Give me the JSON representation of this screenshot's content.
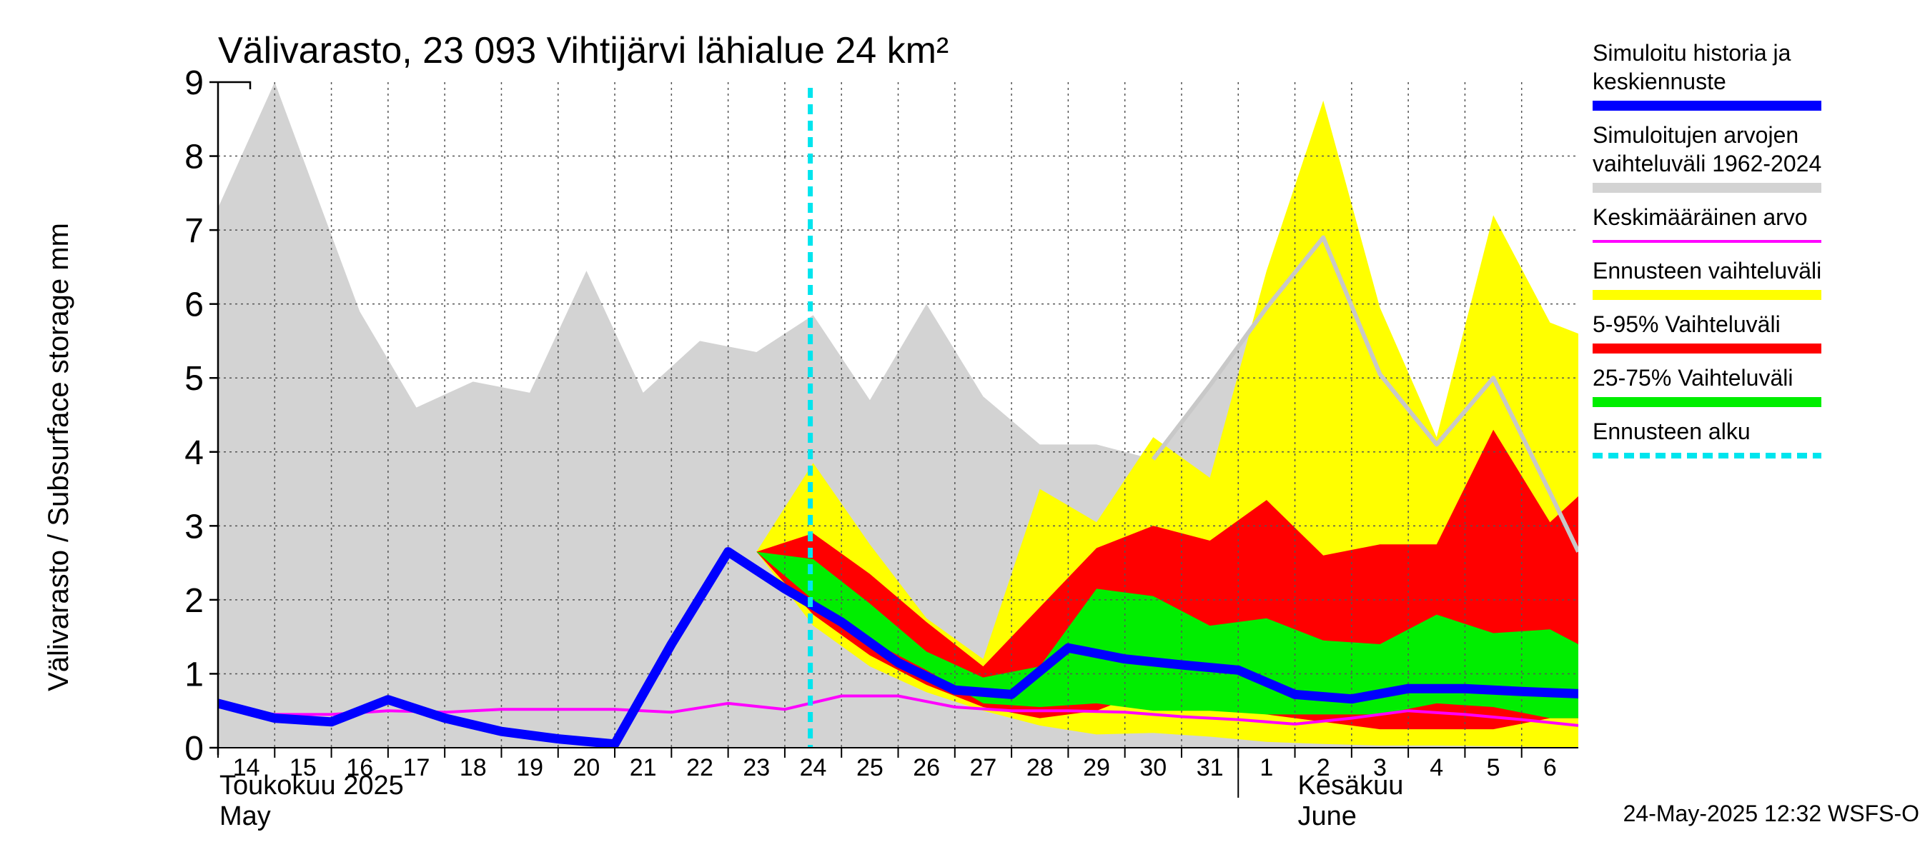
{
  "chart_data": {
    "type": "area",
    "title": "Välivarasto, 23 093 Vihtijärvi lähialue 24 km²",
    "ylabel": "Välivarasto / Subsurface storage  mm",
    "ylim": [
      0,
      9
    ],
    "yticks": [
      "0",
      "1",
      "2",
      "3",
      "4",
      "5",
      "6",
      "7",
      "8",
      "9"
    ],
    "x_range": [
      -0.5,
      23.5
    ],
    "x_tick_labels": [
      "14",
      "15",
      "16",
      "17",
      "18",
      "19",
      "20",
      "21",
      "22",
      "23",
      "24",
      "25",
      "26",
      "27",
      "28",
      "29",
      "30",
      "31",
      "1",
      "2",
      "3",
      "4",
      "5",
      "6"
    ],
    "month_labels": {
      "may_fi": "Toukokuu  2025",
      "may_en": "May",
      "june_fi": "Kesäkuu",
      "june_en": "June"
    },
    "grid": true,
    "legend_position": "right",
    "colors": {
      "history_range": "#d3d3d3",
      "history_line": "#c8c8c8",
      "forecast_range": "#ffff00",
      "p5_95": "#ff0000",
      "p25_75": "#00ee00",
      "simulated": "#0000ff",
      "mean": "#ff00ff",
      "forecast_start": "#00e5ee"
    },
    "history_range": {
      "x": [
        -0.5,
        0.5,
        2,
        3,
        4,
        5,
        6,
        7,
        8,
        9,
        10,
        11,
        12,
        13,
        14,
        15,
        16,
        17,
        18,
        19,
        20,
        21,
        22,
        23,
        23.5
      ],
      "upper": [
        7.3,
        9.0,
        5.9,
        4.6,
        4.95,
        4.8,
        6.45,
        4.8,
        5.5,
        5.35,
        5.85,
        4.7,
        6.0,
        4.75,
        4.1,
        4.1,
        3.9,
        4.9,
        5.95,
        6.9,
        5.05,
        4.1,
        5.0,
        3.45,
        2.65
      ],
      "lower": [
        0,
        0,
        0,
        0,
        0,
        0,
        0,
        0,
        0,
        0,
        0,
        0,
        0,
        0,
        0,
        0,
        0,
        0,
        0,
        0,
        0,
        0,
        0,
        0,
        0
      ]
    },
    "history_max_line": {
      "x": [
        16,
        17,
        18,
        19,
        20,
        21,
        22,
        23,
        23.5
      ],
      "values": [
        3.9,
        4.9,
        5.95,
        6.9,
        5.05,
        4.1,
        5.0,
        3.45,
        2.65
      ]
    },
    "forecast_range": {
      "x": [
        9,
        10,
        11,
        12,
        13,
        14,
        15,
        16,
        17,
        18,
        19,
        20,
        21,
        22,
        23,
        23.5
      ],
      "upper": [
        2.65,
        3.85,
        2.75,
        1.75,
        1.2,
        3.5,
        3.05,
        4.2,
        3.65,
        6.45,
        8.75,
        5.95,
        4.2,
        7.2,
        5.75,
        5.6
      ],
      "lower": [
        2.65,
        1.65,
        1.1,
        0.75,
        0.5,
        0.3,
        0.18,
        0.2,
        0.15,
        0.08,
        0.05,
        0.03,
        0.03,
        0.02,
        0.01,
        0.01
      ]
    },
    "p5_95": {
      "x": [
        9,
        10,
        11,
        12,
        13,
        14,
        15,
        16,
        17,
        18,
        19,
        20,
        21,
        22,
        23,
        23.5
      ],
      "upper": [
        2.65,
        2.9,
        2.35,
        1.7,
        1.1,
        1.9,
        2.7,
        3.0,
        2.8,
        3.35,
        2.6,
        2.75,
        2.75,
        4.3,
        3.05,
        3.4
      ],
      "lower": [
        2.65,
        1.8,
        1.25,
        0.85,
        0.55,
        0.4,
        0.5,
        0.8,
        0.6,
        0.45,
        0.35,
        0.25,
        0.25,
        0.25,
        0.4,
        0.4
      ]
    },
    "p25_75": {
      "x": [
        9,
        10,
        11,
        12,
        13,
        14,
        15,
        16,
        17,
        18,
        19,
        20,
        21,
        22,
        23,
        23.5
      ],
      "upper": [
        2.65,
        2.55,
        1.95,
        1.3,
        0.95,
        1.1,
        2.15,
        2.05,
        1.65,
        1.75,
        1.45,
        1.4,
        1.8,
        1.55,
        1.6,
        1.4
      ],
      "lower": [
        2.65,
        2.0,
        1.45,
        1.05,
        0.6,
        0.55,
        0.6,
        0.5,
        0.5,
        0.45,
        0.45,
        0.45,
        0.6,
        0.55,
        0.4,
        0.4
      ]
    },
    "simulated": {
      "name": "Simuloitu historia ja keskiennuste",
      "x": [
        -0.5,
        0.5,
        1.5,
        2.5,
        3.5,
        4.5,
        5.5,
        6.5,
        7.5,
        8.5,
        9.5,
        10.5,
        11.5,
        12.5,
        13.5,
        14.5,
        15.5,
        16.5,
        17.5,
        18.5,
        19.5,
        20.5,
        21.5,
        22.5,
        23.5
      ],
      "values": [
        0.6,
        0.4,
        0.35,
        0.65,
        0.4,
        0.22,
        0.12,
        0.05,
        1.4,
        2.65,
        2.15,
        1.7,
        1.15,
        0.78,
        0.72,
        1.35,
        1.2,
        1.12,
        1.05,
        0.72,
        0.66,
        0.8,
        0.8,
        0.76,
        0.73
      ]
    },
    "mean": {
      "name": "Keskimääräinen arvo",
      "x": [
        -0.5,
        0.5,
        1.5,
        2.5,
        3.5,
        4.5,
        5.5,
        6.5,
        7.5,
        8.5,
        9.5,
        10.5,
        11.5,
        12.5,
        13.5,
        14.5,
        15.5,
        16.5,
        17.5,
        18.5,
        19.5,
        20.5,
        21.5,
        22.5,
        23.5
      ],
      "values": [
        0.55,
        0.45,
        0.45,
        0.5,
        0.48,
        0.52,
        0.52,
        0.52,
        0.48,
        0.6,
        0.52,
        0.7,
        0.7,
        0.55,
        0.5,
        0.5,
        0.48,
        0.42,
        0.38,
        0.32,
        0.4,
        0.5,
        0.45,
        0.38,
        0.3
      ]
    },
    "forecast_start_x": 9.95,
    "legend": [
      {
        "lines": [
          "Simuloitu historia ja",
          "keskiennuste"
        ],
        "color": "#0000ff",
        "style": "thick"
      },
      {
        "lines": [
          "Simuloitujen arvojen",
          "vaihteluväli 1962-2024"
        ],
        "color": "#d3d3d3",
        "style": "thick"
      },
      {
        "lines": [
          "Keskimääräinen arvo"
        ],
        "color": "#ff00ff",
        "style": "thin"
      },
      {
        "lines": [
          "Ennusteen vaihteluväli"
        ],
        "color": "#ffff00",
        "style": "thick"
      },
      {
        "lines": [
          "5-95% Vaihteluväli"
        ],
        "color": "#ff0000",
        "style": "thick"
      },
      {
        "lines": [
          "25-75% Vaihteluväli"
        ],
        "color": "#00ee00",
        "style": "thick"
      },
      {
        "lines": [
          "Ennusteen alku"
        ],
        "color": "#00e5ee",
        "style": "dashed"
      }
    ],
    "footer": "24-May-2025 12:32 WSFS-O"
  }
}
